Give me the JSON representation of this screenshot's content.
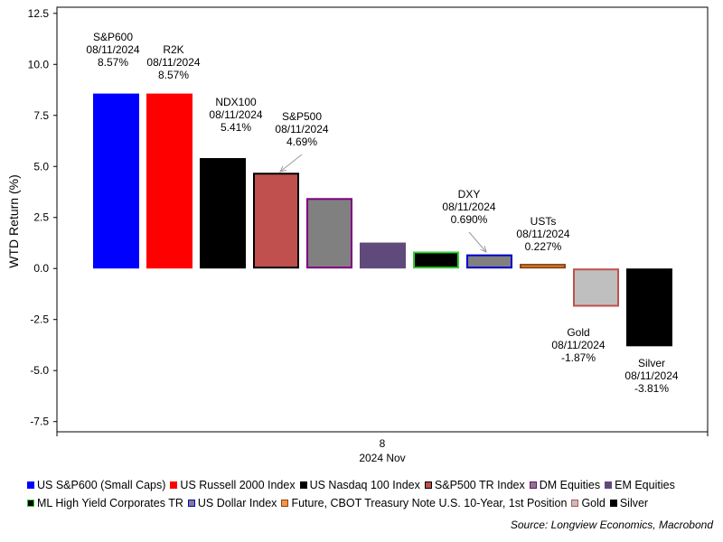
{
  "chart_data": {
    "type": "bar",
    "ylabel": "WTD Return (%)",
    "ylim": [
      -8.0,
      12.8
    ],
    "yticks": [
      -7.5,
      -5.0,
      -2.5,
      0.0,
      2.5,
      5.0,
      7.5,
      10.0,
      12.5
    ],
    "ytick_labels": [
      "-7.5",
      "-5.0",
      "-2.5",
      "0.0",
      "2.5",
      "5.0",
      "7.5",
      "10.0",
      "12.5"
    ],
    "x_tick_label": "8",
    "x_period_label": "2024 Nov",
    "grid": false,
    "legend_placement": "bottom",
    "series": [
      {
        "name": "US S&P600 (Small Caps)",
        "value": 8.57,
        "fill": "#0000ff",
        "border": "#0000ff"
      },
      {
        "name": "US Russell 2000 Index",
        "value": 8.57,
        "fill": "#ff0000",
        "border": "#ff0000"
      },
      {
        "name": "US Nasdaq 100 Index",
        "value": 5.41,
        "fill": "#000000",
        "border": "#000000"
      },
      {
        "name": "S&P500 TR Index",
        "value": 4.69,
        "fill": "#c0504d",
        "border": "#000000"
      },
      {
        "name": "DM Equities",
        "value": 3.45,
        "fill": "#808080",
        "border": "#800080"
      },
      {
        "name": "EM Equities",
        "value": 1.27,
        "fill": "#604a7b",
        "border": "#604a7b"
      },
      {
        "name": "ML High Yield Corporates TR",
        "value": 0.83,
        "fill": "#000000",
        "border": "#33cc33"
      },
      {
        "name": "US Dollar Index",
        "value": 0.69,
        "fill": "#808080",
        "border": "#0000cc"
      },
      {
        "name": "Future, CBOT Treasury Note U.S. 10-Year, 1st Position",
        "value": 0.227,
        "fill": "#f79646",
        "border": "#8b4513"
      },
      {
        "name": "Gold",
        "value": -1.87,
        "fill": "#bfbfbf",
        "border": "#c0504d"
      },
      {
        "name": "Silver",
        "value": -3.81,
        "fill": "#000000",
        "border": "#000000"
      }
    ],
    "annotations": [
      {
        "series_index": 0,
        "lines": [
          "S&P600",
          "08/11/2024",
          "8.57%"
        ]
      },
      {
        "series_index": 1,
        "lines": [
          "R2K",
          "08/11/2024",
          "8.57%"
        ]
      },
      {
        "series_index": 2,
        "lines": [
          "NDX100",
          "08/11/2024",
          "5.41%"
        ]
      },
      {
        "series_index": 3,
        "lines": [
          "S&P500",
          "08/11/2024",
          "4.69%"
        ]
      },
      {
        "series_index": 7,
        "lines": [
          "DXY",
          "08/11/2024",
          "0.690%"
        ]
      },
      {
        "series_index": 8,
        "lines": [
          "USTs",
          "08/11/2024",
          "0.227%"
        ]
      },
      {
        "series_index": 9,
        "lines": [
          "Gold",
          "08/11/2024",
          "-1.87%"
        ]
      },
      {
        "series_index": 10,
        "lines": [
          "Silver",
          "08/11/2024",
          "-3.81%"
        ]
      }
    ],
    "legend_rows": [
      [
        0,
        1,
        2,
        3,
        4,
        5
      ],
      [
        6,
        7,
        8,
        9,
        10
      ]
    ]
  },
  "source": "Source: Longview Economics, Macrobond"
}
